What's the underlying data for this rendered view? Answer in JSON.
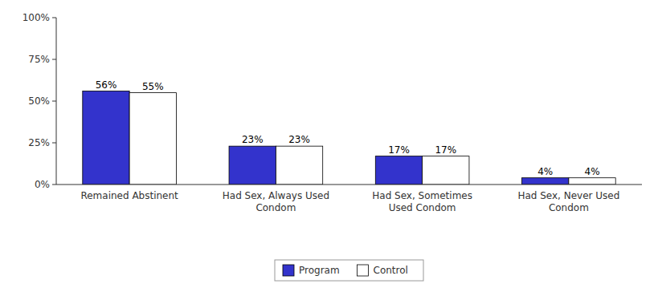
{
  "chart_data": {
    "type": "bar",
    "categories": [
      "Remained Abstinent",
      "Had Sex, Always Used\nCondom",
      "Had Sex, Sometimes\nUsed Condom",
      "Had Sex, Never Used\nCondom"
    ],
    "series": [
      {
        "name": "Program",
        "color": "#3333CC",
        "values": [
          56,
          23,
          17,
          4
        ],
        "value_labels": [
          "56%",
          "23%",
          "17%",
          "4%"
        ]
      },
      {
        "name": "Control",
        "color": "#FFFFFF",
        "values": [
          55,
          23,
          17,
          4
        ],
        "value_labels": [
          "55%",
          "23%",
          "17%",
          "4%"
        ]
      }
    ],
    "ylim": [
      0,
      100
    ],
    "yticks": [
      {
        "value": 0,
        "label": "0%"
      },
      {
        "value": 25,
        "label": "25%"
      },
      {
        "value": 50,
        "label": "50%"
      },
      {
        "value": 75,
        "label": "75%"
      },
      {
        "value": 100,
        "label": "100%"
      }
    ],
    "grid": false,
    "legend": "bottom",
    "data_labels": true
  }
}
